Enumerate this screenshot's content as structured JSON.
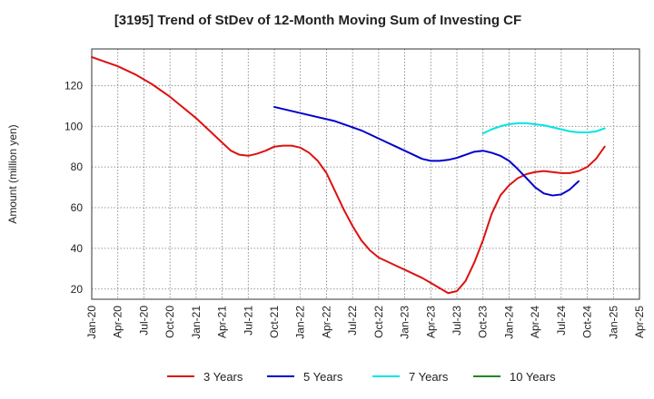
{
  "chart_data": {
    "type": "line",
    "title": "[3195]  Trend of StDev of 12-Month Moving Sum of Investing CF",
    "ylabel": "Amount (million yen)",
    "xlabel": "",
    "ylim": [
      15,
      138
    ],
    "yticks": [
      20,
      40,
      60,
      80,
      100,
      120
    ],
    "x_ticks": [
      "Jan-20",
      "Apr-20",
      "Jul-20",
      "Oct-20",
      "Jan-21",
      "Apr-21",
      "Jul-21",
      "Oct-21",
      "Jan-22",
      "Apr-22",
      "Jul-22",
      "Oct-22",
      "Jan-23",
      "Apr-23",
      "Jul-23",
      "Oct-23",
      "Jan-24",
      "Apr-24",
      "Jul-24",
      "Oct-24",
      "Jan-25",
      "Apr-25"
    ],
    "grid": true,
    "legend_position": "bottom",
    "series": [
      {
        "name": "3 Years",
        "color": "#dd1111",
        "start": "Jan-20",
        "values": [
          134,
          132.5,
          131,
          129.5,
          127.5,
          125.5,
          123,
          120.5,
          117.5,
          114.5,
          111,
          107.5,
          104,
          100,
          96,
          92,
          88,
          86,
          85.5,
          86.5,
          88,
          90,
          90.5,
          90.5,
          89.5,
          87,
          83,
          77,
          68,
          59,
          51,
          44,
          39,
          35.5,
          33.5,
          31.5,
          29.5,
          27.5,
          25.5,
          23,
          20.5,
          18,
          19,
          24,
          33,
          44,
          57,
          66,
          71,
          74.5,
          76.5,
          77.5,
          78,
          77.5,
          77,
          77,
          78,
          80,
          84,
          90
        ]
      },
      {
        "name": "5 Years",
        "color": "#0000cc",
        "start": "Oct-21",
        "values": [
          109.5,
          108.5,
          107.5,
          106.5,
          105.5,
          104.5,
          103.5,
          102.5,
          101,
          99.5,
          98,
          96,
          94,
          92,
          90,
          88,
          86,
          84,
          83,
          83,
          83.5,
          84.5,
          86,
          87.5,
          88,
          87,
          85.5,
          83,
          79,
          74.5,
          70,
          67,
          66,
          66.5,
          69,
          73
        ]
      },
      {
        "name": "7 Years",
        "color": "#00e5e5",
        "start": "Oct-23",
        "values": [
          96.5,
          98.5,
          100,
          101,
          101.5,
          101.5,
          101,
          100.5,
          99.5,
          98.5,
          97.5,
          97,
          97,
          97.5,
          99
        ]
      },
      {
        "name": "10 Years",
        "color": "#228822",
        "start": "Oct-24",
        "values": []
      }
    ]
  }
}
